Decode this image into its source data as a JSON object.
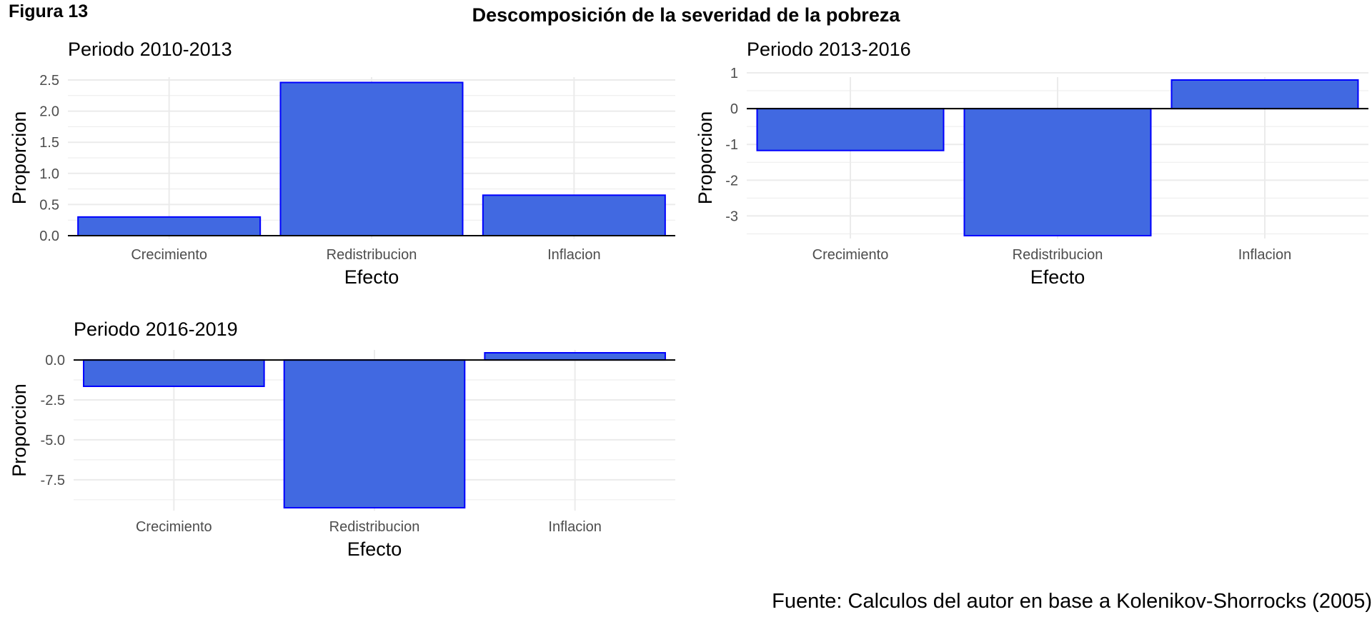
{
  "figure_label": "Figura 13",
  "title": "Descomposición de la severidad de la pobreza",
  "source": "Fuente: Calculos del autor en base a Kolenikov-Shorrocks (2005)",
  "colors": {
    "bar_fill": "#4169E1",
    "bar_stroke": "#0000FF",
    "grid": "#ebebeb",
    "zero_line": "#000000"
  },
  "chart_data": [
    {
      "type": "bar",
      "title": "Periodo 2010-2013",
      "xlabel": "Efecto",
      "ylabel": "Proporcion",
      "categories": [
        "Crecimiento",
        "Redistribucion",
        "Inflacion"
      ],
      "values": [
        0.3,
        2.46,
        0.65
      ],
      "ylim": [
        0,
        2.5
      ],
      "yticks": [
        0,
        0.5,
        1,
        1.5,
        2,
        2.5
      ],
      "ytick_labels": [
        "0.0",
        "0.5",
        "1.0",
        "1.5",
        "2.0",
        "2.5"
      ],
      "grid": true
    },
    {
      "type": "bar",
      "title": "Periodo 2013-2016",
      "xlabel": "Efecto",
      "ylabel": "Proporcion",
      "categories": [
        "Crecimiento",
        "Redistribucion",
        "Inflacion"
      ],
      "values": [
        -1.17,
        -3.55,
        0.8
      ],
      "ylim": [
        -3.55,
        0.8
      ],
      "yticks": [
        -3,
        -2,
        -1,
        0,
        1
      ],
      "ytick_labels": [
        "-3",
        "-2",
        "-1",
        "0",
        "1"
      ],
      "grid": true
    },
    {
      "type": "bar",
      "title": "Periodo 2016-2019",
      "xlabel": "Efecto",
      "ylabel": "Proporcion",
      "categories": [
        "Crecimiento",
        "Redistribucion",
        "Inflacion"
      ],
      "values": [
        -1.65,
        -9.25,
        0.45
      ],
      "ylim": [
        -9.25,
        0.45
      ],
      "yticks": [
        -7.5,
        -5,
        -2.5,
        0
      ],
      "ytick_labels": [
        "-7.5",
        "-5.0",
        "-2.5",
        "0.0"
      ],
      "grid": true
    }
  ]
}
